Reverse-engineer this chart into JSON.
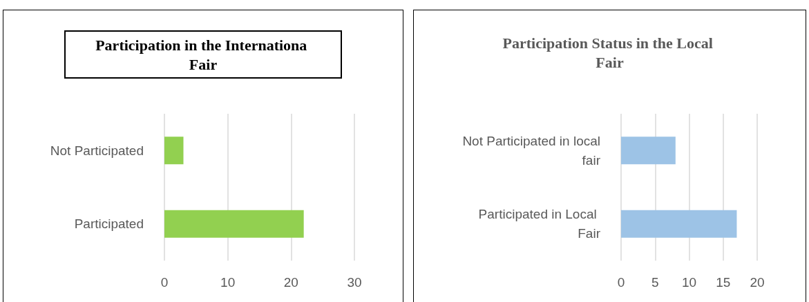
{
  "chart_data": [
    {
      "type": "bar",
      "orientation": "horizontal",
      "title": "Participation in the Internationa Fair",
      "categories": [
        "Not Participated",
        "Participated"
      ],
      "values": [
        3,
        22
      ],
      "color": "#92d050",
      "xlim": [
        0,
        30
      ],
      "xticks": [
        0,
        10,
        20,
        30
      ],
      "grid": "x"
    },
    {
      "type": "bar",
      "orientation": "horizontal",
      "title": "Participation Status in the Local Fair",
      "categories": [
        "Not Participated in local fair",
        "Participated in Local Fair"
      ],
      "values": [
        8,
        17
      ],
      "color": "#9dc3e6",
      "xlim": [
        0,
        20
      ],
      "xticks": [
        0,
        5,
        10,
        15,
        20
      ],
      "grid": "x"
    }
  ]
}
